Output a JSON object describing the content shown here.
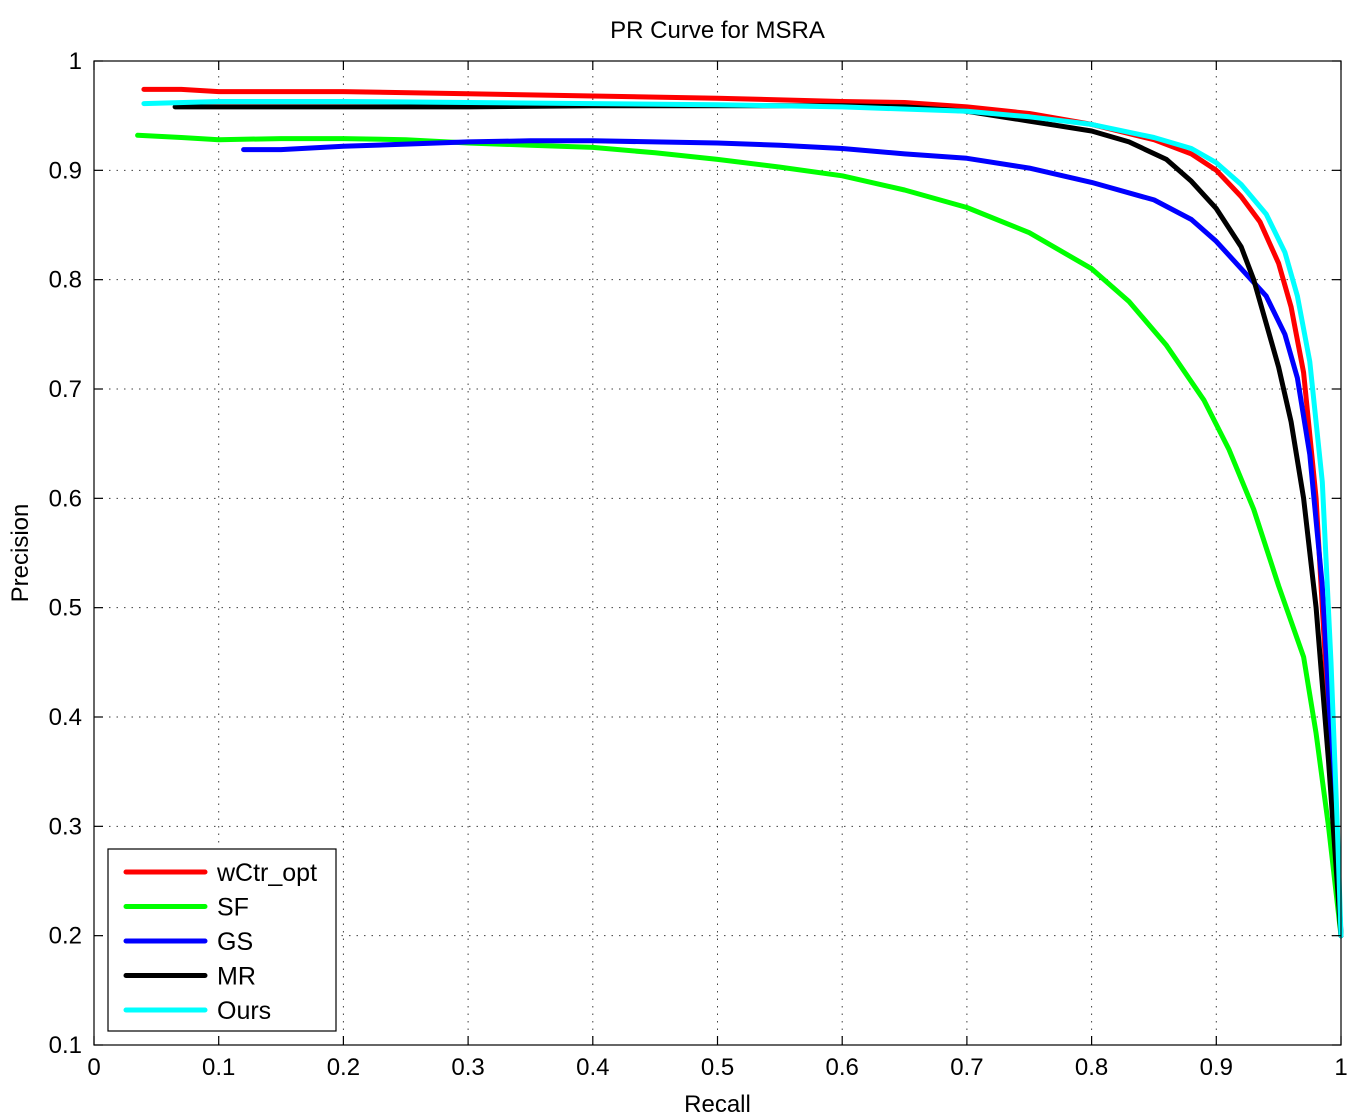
{
  "chart_data": {
    "type": "line",
    "title": "PR Curve for MSRA",
    "xlabel": "Recall",
    "ylabel": "Precision",
    "xlim": [
      0,
      1
    ],
    "ylim": [
      0.1,
      1
    ],
    "xticks": [
      0,
      0.1,
      0.2,
      0.3,
      0.4,
      0.5,
      0.6,
      0.7,
      0.8,
      0.9,
      1
    ],
    "xtick_labels": [
      "0",
      "0.1",
      "0.2",
      "0.3",
      "0.4",
      "0.5",
      "0.6",
      "0.7",
      "0.8",
      "0.9",
      "1"
    ],
    "yticks": [
      0.1,
      0.2,
      0.3,
      0.4,
      0.5,
      0.6,
      0.7,
      0.8,
      0.9,
      1
    ],
    "ytick_labels": [
      "0.1",
      "0.2",
      "0.3",
      "0.4",
      "0.5",
      "0.6",
      "0.7",
      "0.8",
      "0.9",
      "1"
    ],
    "grid": true,
    "legend_position": "bottom-left",
    "series": [
      {
        "name": "wCtr_opt",
        "color": "#ff0000",
        "points": [
          [
            0.04,
            0.974
          ],
          [
            0.07,
            0.974
          ],
          [
            0.1,
            0.972
          ],
          [
            0.15,
            0.972
          ],
          [
            0.2,
            0.972
          ],
          [
            0.3,
            0.97
          ],
          [
            0.4,
            0.968
          ],
          [
            0.5,
            0.966
          ],
          [
            0.6,
            0.963
          ],
          [
            0.65,
            0.962
          ],
          [
            0.7,
            0.958
          ],
          [
            0.75,
            0.952
          ],
          [
            0.8,
            0.942
          ],
          [
            0.85,
            0.928
          ],
          [
            0.88,
            0.915
          ],
          [
            0.9,
            0.9
          ],
          [
            0.92,
            0.876
          ],
          [
            0.935,
            0.853
          ],
          [
            0.95,
            0.815
          ],
          [
            0.96,
            0.775
          ],
          [
            0.97,
            0.715
          ],
          [
            0.98,
            0.6
          ],
          [
            0.99,
            0.4
          ],
          [
            1.0,
            0.2
          ]
        ]
      },
      {
        "name": "SF",
        "color": "#00ff00",
        "points": [
          [
            0.035,
            0.932
          ],
          [
            0.07,
            0.93
          ],
          [
            0.1,
            0.928
          ],
          [
            0.15,
            0.929
          ],
          [
            0.2,
            0.929
          ],
          [
            0.25,
            0.928
          ],
          [
            0.3,
            0.925
          ],
          [
            0.35,
            0.923
          ],
          [
            0.4,
            0.921
          ],
          [
            0.45,
            0.916
          ],
          [
            0.5,
            0.91
          ],
          [
            0.55,
            0.903
          ],
          [
            0.6,
            0.895
          ],
          [
            0.65,
            0.882
          ],
          [
            0.7,
            0.866
          ],
          [
            0.75,
            0.843
          ],
          [
            0.8,
            0.81
          ],
          [
            0.83,
            0.78
          ],
          [
            0.86,
            0.74
          ],
          [
            0.89,
            0.69
          ],
          [
            0.91,
            0.645
          ],
          [
            0.93,
            0.59
          ],
          [
            0.95,
            0.52
          ],
          [
            0.97,
            0.455
          ],
          [
            0.98,
            0.385
          ],
          [
            0.99,
            0.3
          ],
          [
            1.0,
            0.2
          ]
        ]
      },
      {
        "name": "GS",
        "color": "#0000ff",
        "points": [
          [
            0.12,
            0.919
          ],
          [
            0.15,
            0.919
          ],
          [
            0.2,
            0.922
          ],
          [
            0.25,
            0.924
          ],
          [
            0.3,
            0.926
          ],
          [
            0.35,
            0.927
          ],
          [
            0.4,
            0.927
          ],
          [
            0.45,
            0.926
          ],
          [
            0.5,
            0.925
          ],
          [
            0.55,
            0.923
          ],
          [
            0.6,
            0.92
          ],
          [
            0.65,
            0.915
          ],
          [
            0.7,
            0.911
          ],
          [
            0.75,
            0.902
          ],
          [
            0.8,
            0.889
          ],
          [
            0.85,
            0.873
          ],
          [
            0.88,
            0.855
          ],
          [
            0.9,
            0.835
          ],
          [
            0.92,
            0.81
          ],
          [
            0.94,
            0.785
          ],
          [
            0.955,
            0.75
          ],
          [
            0.965,
            0.71
          ],
          [
            0.975,
            0.64
          ],
          [
            0.985,
            0.52
          ],
          [
            0.993,
            0.36
          ],
          [
            1.0,
            0.2
          ]
        ]
      },
      {
        "name": "MR",
        "color": "#000000",
        "points": [
          [
            0.065,
            0.958
          ],
          [
            0.1,
            0.958
          ],
          [
            0.2,
            0.958
          ],
          [
            0.3,
            0.958
          ],
          [
            0.4,
            0.959
          ],
          [
            0.5,
            0.959
          ],
          [
            0.6,
            0.959
          ],
          [
            0.65,
            0.958
          ],
          [
            0.7,
            0.954
          ],
          [
            0.75,
            0.945
          ],
          [
            0.8,
            0.936
          ],
          [
            0.83,
            0.926
          ],
          [
            0.86,
            0.91
          ],
          [
            0.88,
            0.89
          ],
          [
            0.9,
            0.865
          ],
          [
            0.92,
            0.83
          ],
          [
            0.93,
            0.8
          ],
          [
            0.94,
            0.76
          ],
          [
            0.95,
            0.72
          ],
          [
            0.96,
            0.67
          ],
          [
            0.97,
            0.6
          ],
          [
            0.98,
            0.5
          ],
          [
            0.99,
            0.36
          ],
          [
            1.0,
            0.2
          ]
        ]
      },
      {
        "name": "Ours",
        "color": "#00ffff",
        "points": [
          [
            0.04,
            0.961
          ],
          [
            0.1,
            0.963
          ],
          [
            0.2,
            0.963
          ],
          [
            0.3,
            0.962
          ],
          [
            0.4,
            0.961
          ],
          [
            0.5,
            0.96
          ],
          [
            0.6,
            0.958
          ],
          [
            0.7,
            0.954
          ],
          [
            0.75,
            0.949
          ],
          [
            0.8,
            0.942
          ],
          [
            0.85,
            0.93
          ],
          [
            0.88,
            0.92
          ],
          [
            0.9,
            0.907
          ],
          [
            0.92,
            0.887
          ],
          [
            0.94,
            0.86
          ],
          [
            0.955,
            0.825
          ],
          [
            0.965,
            0.785
          ],
          [
            0.975,
            0.725
          ],
          [
            0.985,
            0.615
          ],
          [
            0.992,
            0.45
          ],
          [
            0.997,
            0.3
          ],
          [
            1.0,
            0.2
          ]
        ]
      }
    ]
  }
}
